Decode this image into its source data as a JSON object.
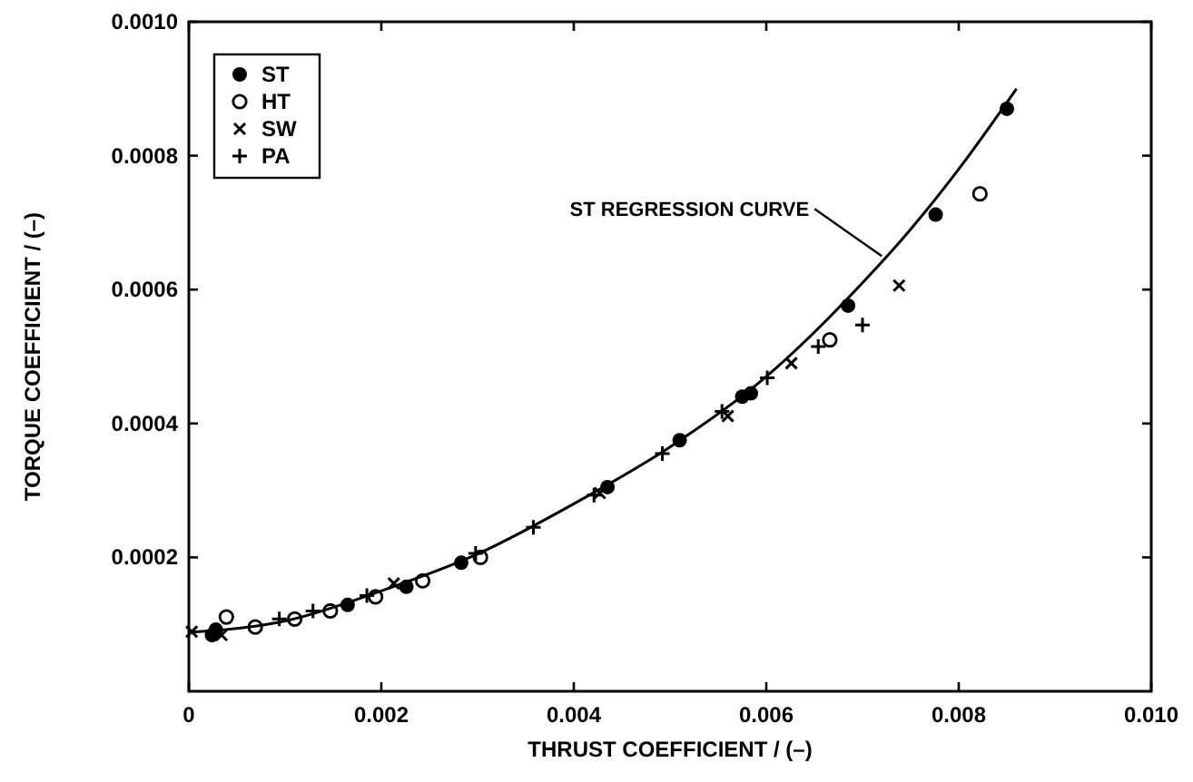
{
  "chart_data": {
    "type": "scatter",
    "xlabel": "THRUST COEFFICIENT / (–)",
    "ylabel": "TORQUE COEFFICIENT / (–)",
    "xlim": [
      0,
      0.01
    ],
    "xticks": [
      0,
      0.002,
      0.004,
      0.006,
      0.008,
      {
        "value": 0.01,
        "label": "0.010"
      }
    ],
    "ylim": [
      0,
      0.001
    ],
    "yticks": [
      0.0002,
      0.0004,
      0.0006,
      0.0008,
      {
        "value": 0.001,
        "label": "0.0010"
      }
    ],
    "grid": false,
    "legend": "top left",
    "annotations": [
      {
        "text": "ST REGRESSION CURVE",
        "x": 0.0072,
        "y": 0.00065
      }
    ],
    "series": [
      {
        "name": "ST",
        "color": "#000000",
        "marker": "circle",
        "x": [
          0.00024,
          0.00028,
          0.00165,
          0.00226,
          0.00283,
          0.00435,
          0.0051,
          0.00584,
          0.00575,
          0.00685,
          0.00776,
          0.0085
        ],
        "values": [
          8.4e-05,
          9.2e-05,
          0.000129,
          0.000156,
          0.000192,
          0.000305,
          0.000375,
          0.000445,
          0.00044,
          0.000576,
          0.000712,
          0.00087
        ]
      },
      {
        "name": "HT",
        "color": "#000000",
        "marker": "circle_open",
        "x": [
          0.00039,
          0.00069,
          0.0011,
          0.00147,
          0.00194,
          0.00243,
          0.00303,
          0.00666,
          0.00822
        ],
        "values": [
          0.000111,
          9.6e-05,
          0.000108,
          0.00012,
          0.000141,
          0.000165,
          0.0002,
          0.000525,
          0.000743
        ]
      },
      {
        "name": "SW",
        "color": "#000000",
        "marker": "cross",
        "x": [
          3e-05,
          0.00034,
          0.00213,
          0.00427,
          0.0056,
          0.00626,
          0.00738
        ],
        "values": [
          8.9e-05,
          8.4e-05,
          0.000161,
          0.000296,
          0.000411,
          0.00049,
          0.000606
        ]
      },
      {
        "name": "PA",
        "color": "#000000",
        "marker": "plus",
        "x": [
          0.00094,
          0.00129,
          0.00185,
          0.00298,
          0.00358,
          0.00421,
          0.00492,
          0.00554,
          0.00601,
          0.00654,
          0.007
        ],
        "values": [
          0.000108,
          0.00012,
          0.000143,
          0.000206,
          0.000245,
          0.000293,
          0.000355,
          0.000418,
          0.000468,
          0.000515,
          0.000547
        ]
      },
      {
        "type": "line",
        "color": "#000000",
        "marker": "none",
        "x": [
          0,
          0.001,
          0.002,
          0.003,
          0.004,
          0.005,
          0.006,
          0.007,
          0.0075,
          0.008,
          0.0086
        ],
        "values": [
          8.8e-05,
          0.000105,
          0.00015,
          0.000205,
          0.00028,
          0.000365,
          0.00047,
          0.00061,
          0.00069,
          0.00078,
          0.0009
        ]
      }
    ]
  }
}
